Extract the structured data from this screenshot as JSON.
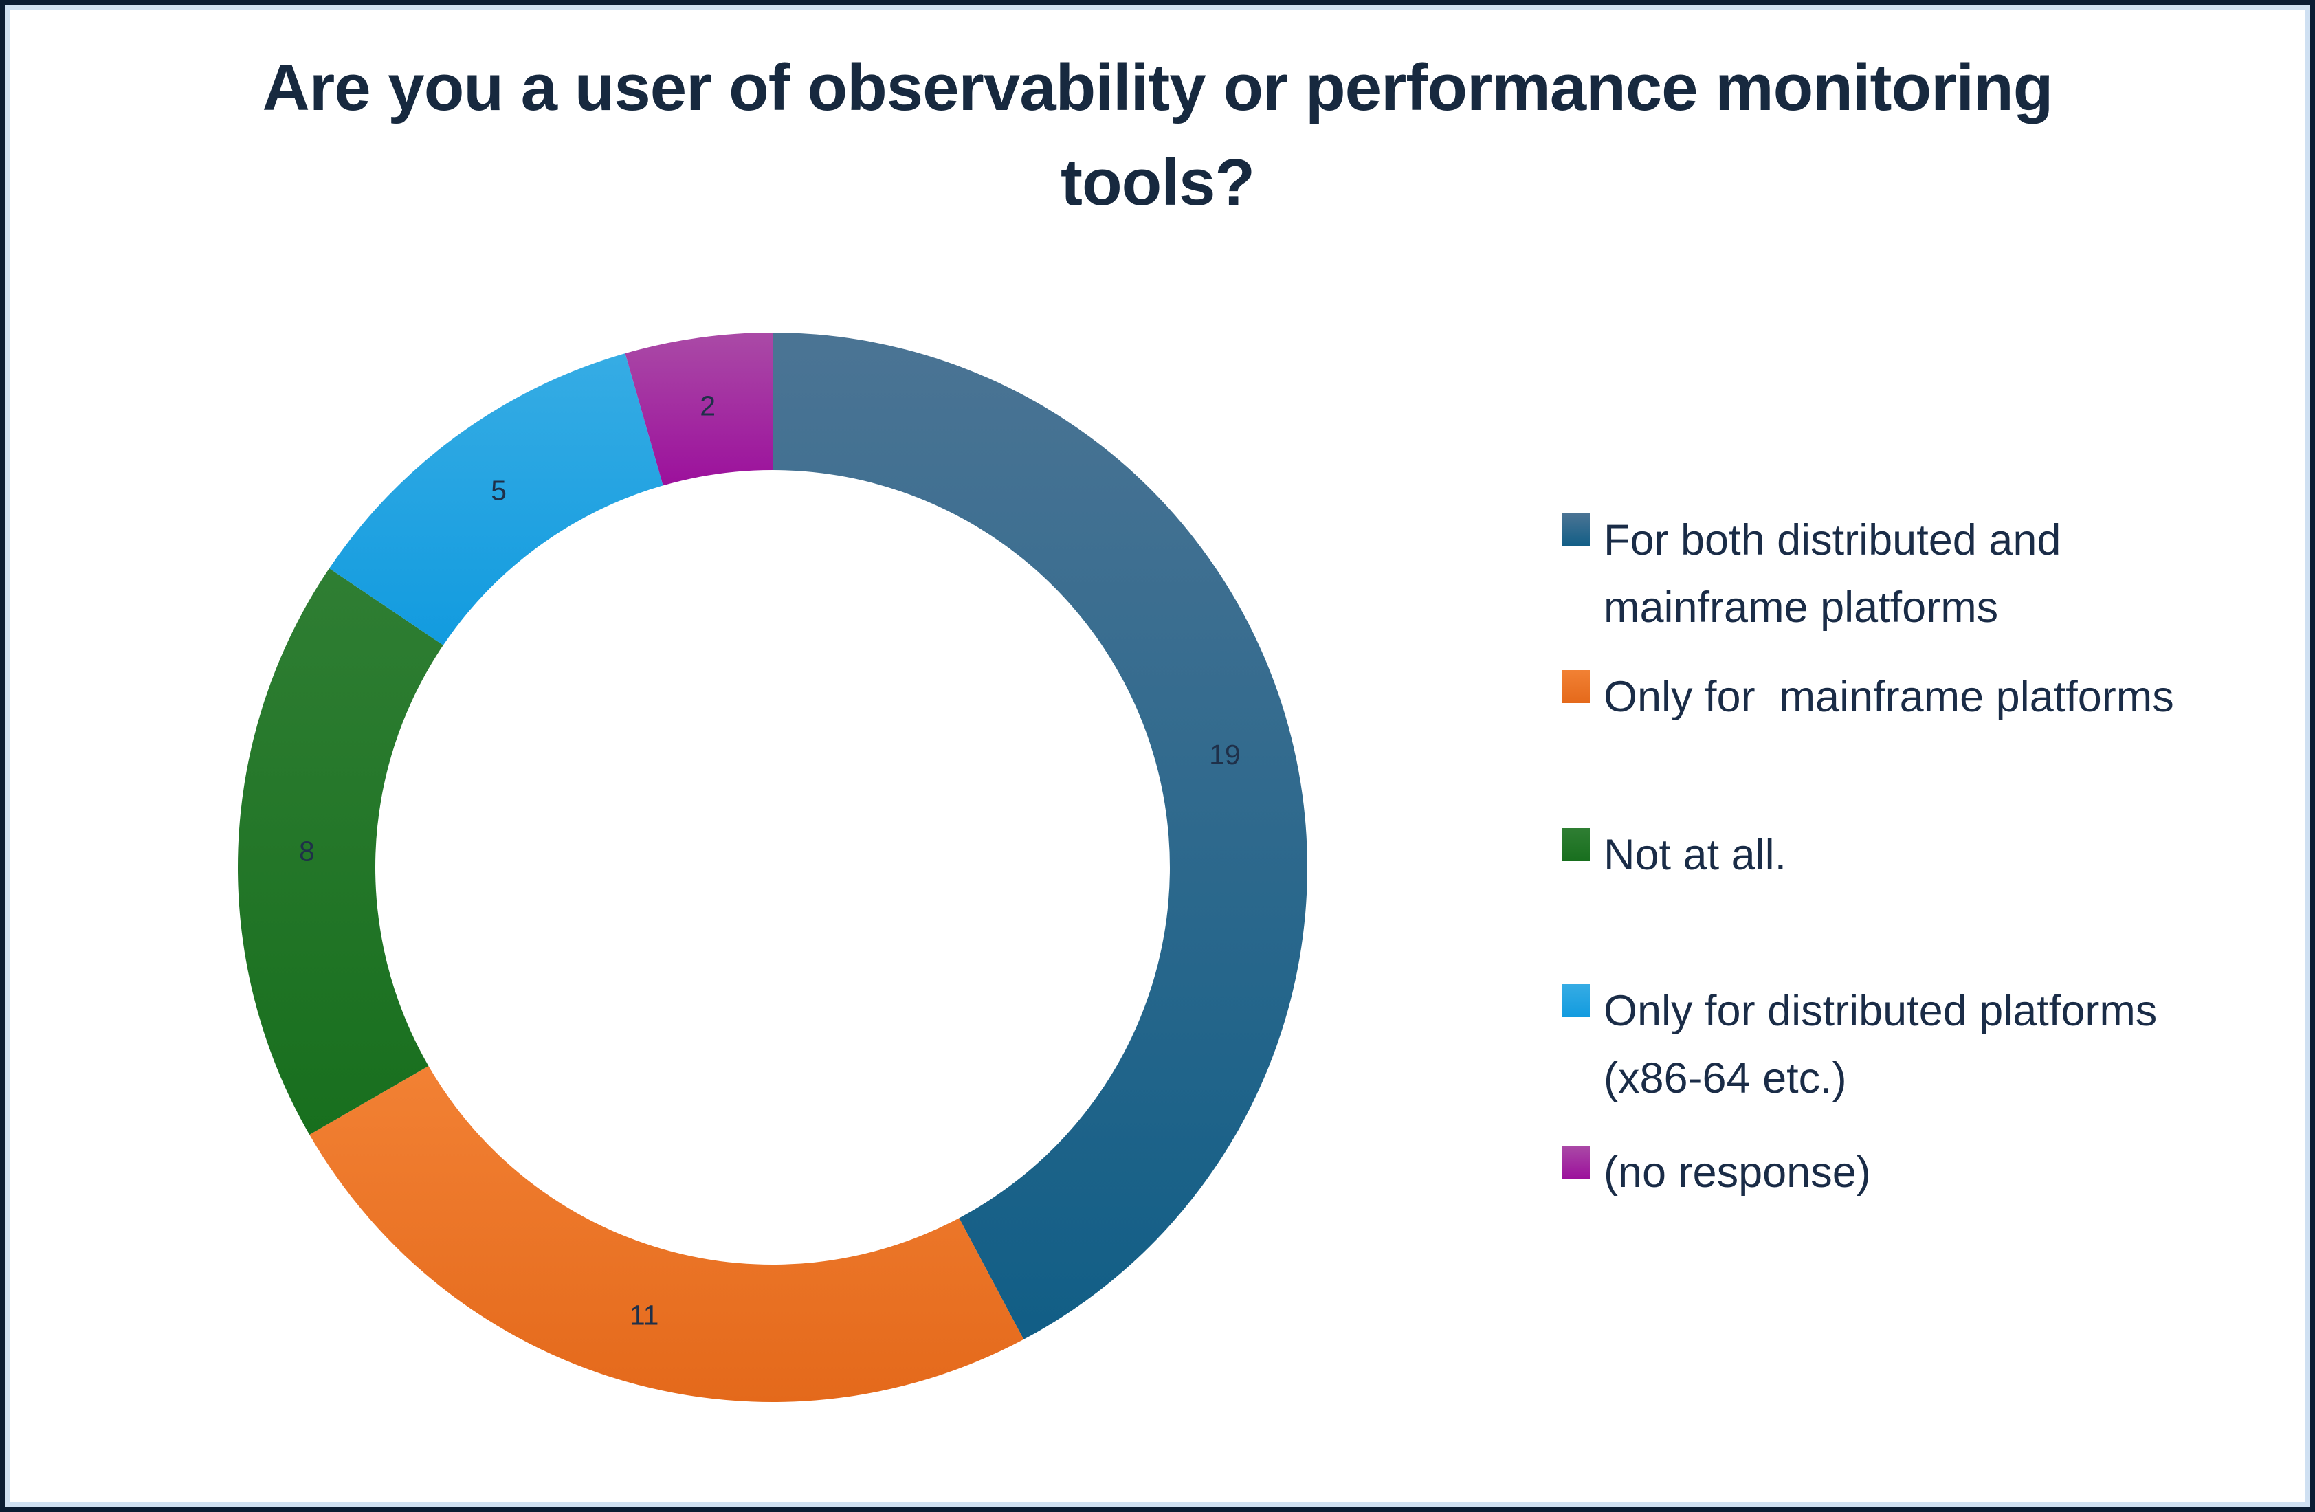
{
  "header": {
    "title_line1": "Are you a user of observability or performance monitoring",
    "title_line2": "tools?"
  },
  "chart_data": {
    "type": "pie",
    "subtype": "donut",
    "title": "Are you a user of observability or performance monitoring tools?",
    "categories": [
      "For both distributed and mainframe platforms",
      "Only for  mainframe platforms",
      "Not at all.",
      "Only for distributed platforms (x86-64 etc.)",
      "(no response)"
    ],
    "values": [
      19,
      11,
      8,
      5,
      2
    ],
    "data_labels": [
      "19",
      "11",
      "8",
      "5",
      "2"
    ],
    "start_angle_deg": 0,
    "direction": "clockwise",
    "hole_ratio": 0.74,
    "legend_position": "right",
    "grid": false,
    "colors": [
      {
        "top": "#4B7494",
        "bottom": "#115E86"
      },
      {
        "top": "#F28134",
        "bottom": "#E4691B"
      },
      {
        "top": "#2F7E33",
        "bottom": "#186F1E"
      },
      {
        "top": "#36ACE4",
        "bottom": "#129BDF"
      },
      {
        "top": "#AA4AA6",
        "bottom": "#9C109C"
      }
    ],
    "legend": [
      {
        "lines": [
          "For both distributed and",
          "mainframe platforms"
        ]
      },
      {
        "lines": [
          "Only for  mainframe platforms"
        ]
      },
      {
        "lines": [
          "Not at all."
        ]
      },
      {
        "lines": [
          "Only for distributed platforms",
          "(x86-64 etc.)"
        ]
      },
      {
        "lines": [
          "(no response)"
        ]
      }
    ],
    "label_color": "#1F3049",
    "title_color": "#17293F",
    "legend_text_color": "#1A2C47",
    "frame_outer_color": "#0A1C33",
    "frame_inner_color": "#CFE0F2"
  }
}
